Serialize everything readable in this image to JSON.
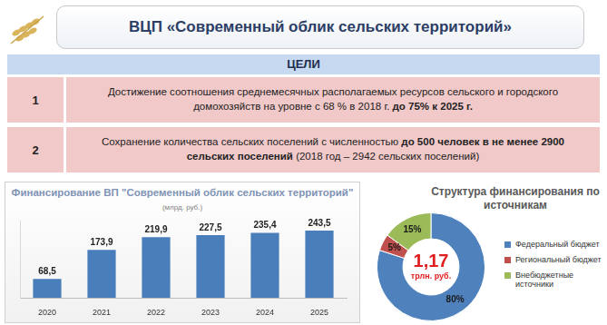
{
  "title": "ВЦП «Современный облик сельских территорий»",
  "goals": {
    "header": "ЦЕЛИ",
    "rows": [
      {
        "number": "1",
        "parts": [
          {
            "text": "Достижение соотношения среднемесячных располагаемых ресурсов сельского и городского домохозяйств на уровне с 68 % в 2018 г. ",
            "bold": false
          },
          {
            "text": "до 75% к 2025 г.",
            "bold": true
          }
        ]
      },
      {
        "number": "2",
        "parts": [
          {
            "text": "Сохранение количества сельских поселений с численностью ",
            "bold": false
          },
          {
            "text": "до 500 человек в не менее 2900 сельских поселений",
            "bold": true
          },
          {
            "text": " (2018 год – 2942 сельских поселений)",
            "bold": false
          }
        ]
      }
    ]
  },
  "chart_data": [
    {
      "type": "bar",
      "title": "Финансирование ВП \"Современный облик сельских территорий\"",
      "subtitle": "(млрд. руб.)",
      "categories": [
        "2020",
        "2021",
        "2022",
        "2023",
        "2024",
        "2025"
      ],
      "values": [
        68.5,
        173.9,
        219.9,
        227.5,
        235.4,
        243.5
      ],
      "value_labels": [
        "68,5",
        "173,9",
        "219,9",
        "227,5",
        "235,4",
        "243,5"
      ],
      "color": "#4a7ebb",
      "ylim": [
        0,
        280
      ],
      "grid": false,
      "data_labels": true,
      "tick_labels": "x"
    },
    {
      "type": "doughnut",
      "title": "Структура финансирования по источникам",
      "categories": [
        "Федеральный бюджет",
        "Региональный бюджет",
        "Внебюджетные источники"
      ],
      "values": [
        80,
        5,
        15
      ],
      "value_labels": [
        "80%",
        "5%",
        "15%"
      ],
      "colors": [
        "#4f81bd",
        "#c0504d",
        "#9bbb59"
      ],
      "annotations": [
        "1,17",
        "трлн. руб."
      ],
      "legend": "right",
      "data_labels": true
    }
  ]
}
